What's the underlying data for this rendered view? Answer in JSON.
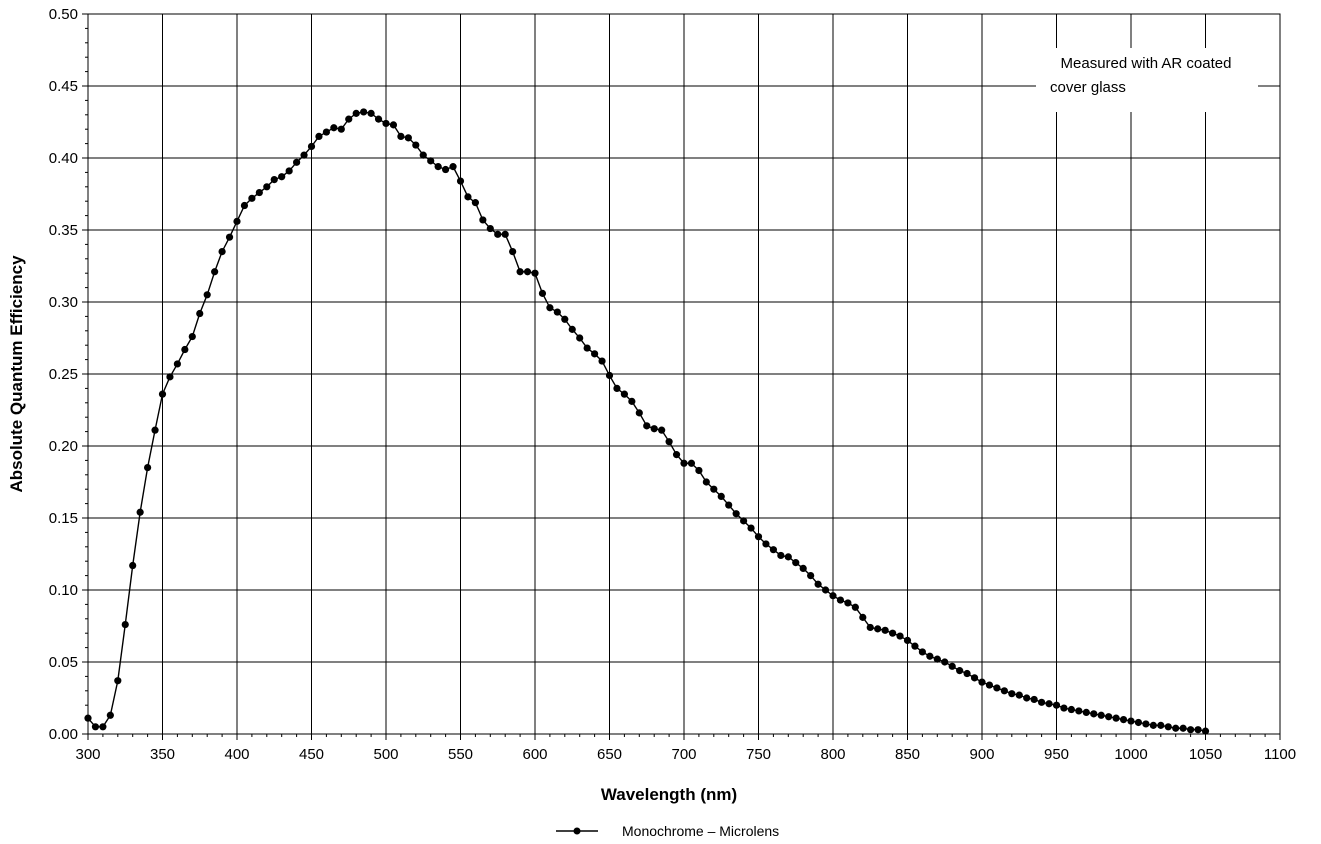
{
  "chart_data": {
    "type": "line",
    "xlabel": "Wavelength (nm)",
    "ylabel": "Absolute Quantum Efficiency",
    "xlim": [
      300,
      1100
    ],
    "ylim": [
      0,
      0.5
    ],
    "x_ticks": [
      300,
      350,
      400,
      450,
      500,
      550,
      600,
      650,
      700,
      750,
      800,
      850,
      900,
      950,
      1000,
      1050,
      1100
    ],
    "y_ticks": [
      0.0,
      0.05,
      0.1,
      0.15,
      0.2,
      0.25,
      0.3,
      0.35,
      0.4,
      0.45,
      0.5
    ],
    "x_tick_labels": [
      "300",
      "350",
      "400",
      "450",
      "500",
      "550",
      "600",
      "650",
      "700",
      "750",
      "800",
      "850",
      "900",
      "950",
      "1000",
      "1050",
      "1100"
    ],
    "y_tick_labels": [
      "0.00",
      "0.05",
      "0.10",
      "0.15",
      "0.20",
      "0.25",
      "0.30",
      "0.35",
      "0.40",
      "0.45",
      "0.50"
    ],
    "grid": true,
    "legend_position": "bottom-center",
    "annotation": {
      "line1": "Measured with AR coated",
      "line2": "cover glass",
      "position": "top-right"
    },
    "colors": {
      "line": "#000000",
      "marker": "#000000",
      "grid": "#000000"
    },
    "series": [
      {
        "name": "Monochrome – Microlens",
        "x": [
          300,
          305,
          310,
          315,
          320,
          325,
          330,
          335,
          340,
          345,
          350,
          355,
          360,
          365,
          370,
          375,
          380,
          385,
          390,
          395,
          400,
          405,
          410,
          415,
          420,
          425,
          430,
          435,
          440,
          445,
          450,
          455,
          460,
          465,
          470,
          475,
          480,
          485,
          490,
          495,
          500,
          505,
          510,
          515,
          520,
          525,
          530,
          535,
          540,
          545,
          550,
          555,
          560,
          565,
          570,
          575,
          580,
          585,
          590,
          595,
          600,
          605,
          610,
          615,
          620,
          625,
          630,
          635,
          640,
          645,
          650,
          655,
          660,
          665,
          670,
          675,
          680,
          685,
          690,
          695,
          700,
          705,
          710,
          715,
          720,
          725,
          730,
          735,
          740,
          745,
          750,
          755,
          760,
          765,
          770,
          775,
          780,
          785,
          790,
          795,
          800,
          805,
          810,
          815,
          820,
          825,
          830,
          835,
          840,
          845,
          850,
          855,
          860,
          865,
          870,
          875,
          880,
          885,
          890,
          895,
          900,
          905,
          910,
          915,
          920,
          925,
          930,
          935,
          940,
          945,
          950,
          955,
          960,
          965,
          970,
          975,
          980,
          985,
          990,
          995,
          1000,
          1005,
          1010,
          1015,
          1020,
          1025,
          1030,
          1035,
          1040,
          1045,
          1050
        ],
        "y": [
          0.011,
          0.005,
          0.005,
          0.013,
          0.037,
          0.076,
          0.117,
          0.154,
          0.185,
          0.211,
          0.236,
          0.248,
          0.257,
          0.267,
          0.276,
          0.292,
          0.305,
          0.321,
          0.335,
          0.345,
          0.356,
          0.367,
          0.372,
          0.376,
          0.38,
          0.385,
          0.387,
          0.391,
          0.397,
          0.402,
          0.408,
          0.415,
          0.418,
          0.421,
          0.42,
          0.427,
          0.431,
          0.432,
          0.431,
          0.427,
          0.424,
          0.423,
          0.415,
          0.414,
          0.409,
          0.402,
          0.398,
          0.394,
          0.392,
          0.394,
          0.384,
          0.373,
          0.369,
          0.357,
          0.351,
          0.347,
          0.347,
          0.335,
          0.321,
          0.321,
          0.32,
          0.306,
          0.296,
          0.293,
          0.288,
          0.281,
          0.275,
          0.268,
          0.264,
          0.259,
          0.249,
          0.24,
          0.236,
          0.231,
          0.223,
          0.214,
          0.212,
          0.211,
          0.203,
          0.194,
          0.188,
          0.188,
          0.183,
          0.175,
          0.17,
          0.165,
          0.159,
          0.153,
          0.148,
          0.143,
          0.137,
          0.132,
          0.128,
          0.124,
          0.123,
          0.119,
          0.115,
          0.11,
          0.104,
          0.1,
          0.096,
          0.093,
          0.091,
          0.088,
          0.081,
          0.074,
          0.073,
          0.072,
          0.07,
          0.068,
          0.065,
          0.061,
          0.057,
          0.054,
          0.052,
          0.05,
          0.047,
          0.044,
          0.042,
          0.039,
          0.036,
          0.034,
          0.032,
          0.03,
          0.028,
          0.027,
          0.025,
          0.024,
          0.022,
          0.021,
          0.02,
          0.018,
          0.017,
          0.016,
          0.015,
          0.014,
          0.013,
          0.012,
          0.011,
          0.01,
          0.009,
          0.008,
          0.007,
          0.006,
          0.006,
          0.005,
          0.004,
          0.004,
          0.003,
          0.003,
          0.002
        ]
      }
    ]
  }
}
